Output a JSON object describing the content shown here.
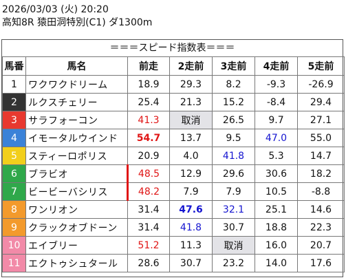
{
  "header": {
    "date_line": "2026/03/03 (火) 20:20",
    "race_line": "高知8R 猿田洞特別(C1) ダ1300m"
  },
  "banner": "＝＝＝スピード指数表＝＝＝",
  "columns": [
    "馬番",
    "馬名",
    "前走",
    "2走前",
    "3走前",
    "4走前",
    "5走前"
  ],
  "colors": {
    "red": "#e01515",
    "blue": "#1515d0",
    "gray_cell": "#e3e3e7"
  },
  "rows": [
    {
      "num": "1",
      "num_bg": "#ffffff",
      "num_fg": "#111111",
      "name": "ワクワクドリーム",
      "c1": "18.9",
      "c2": "29.3",
      "c3": "8.2",
      "c4": "-9.3",
      "c5": "-26.9"
    },
    {
      "num": "2",
      "num_bg": "#333333",
      "num_fg": "#ffffff",
      "name": "ルクスチェリー",
      "c1": "25.4",
      "c2": "21.3",
      "c3": "15.2",
      "c4": "-8.4",
      "c5": "29.4"
    },
    {
      "num": "3",
      "num_bg": "#e8392f",
      "num_fg": "#ffffff",
      "name": "サラフォーコン",
      "c1": "41.3",
      "c2": "取消",
      "c3": "26.5",
      "c4": "9.7",
      "c5": "27.1"
    },
    {
      "num": "4",
      "num_bg": "#3b82d8",
      "num_fg": "#ffffff",
      "name": "イモータルウインド",
      "c1": "54.7",
      "c2": "13.7",
      "c3": "9.5",
      "c4": "47.0",
      "c5": "55.0"
    },
    {
      "num": "5",
      "num_bg": "#f2cf1c",
      "num_fg": "#ffffff",
      "name": "スティーロポリス",
      "c1": "20.9",
      "c2": "4.0",
      "c3": "41.8",
      "c4": "5.3",
      "c5": "14.7"
    },
    {
      "num": "6",
      "num_bg": "#2fa84a",
      "num_fg": "#ffffff",
      "name": "ブラビオ",
      "c1": "48.5",
      "c2": "12.9",
      "c3": "29.6",
      "c4": "30.6",
      "c5": "18.2"
    },
    {
      "num": "7",
      "num_bg": "#2fa84a",
      "num_fg": "#ffffff",
      "name": "ビービーバシリス",
      "c1": "48.2",
      "c2": "7.9",
      "c3": "7.9",
      "c4": "10.5",
      "c5": "-8.8"
    },
    {
      "num": "8",
      "num_bg": "#f39a2c",
      "num_fg": "#ffffff",
      "name": "ワンリオン",
      "c1": "31.4",
      "c2": "47.6",
      "c3": "32.1",
      "c4": "25.1",
      "c5": "14.6"
    },
    {
      "num": "9",
      "num_bg": "#f39a2c",
      "num_fg": "#ffffff",
      "name": "クラックオブドーン",
      "c1": "31.4",
      "c2": "41.8",
      "c3": "30.7",
      "c4": "18.8",
      "c5": "22.3"
    },
    {
      "num": "10",
      "num_bg": "#f28aa8",
      "num_fg": "#ffffff",
      "name": "エイブリー",
      "c1": "51.2",
      "c2": "11.3",
      "c3": "取消",
      "c4": "16.0",
      "c5": "20.7"
    },
    {
      "num": "11",
      "num_bg": "#f28aa8",
      "num_fg": "#ffffff",
      "name": "エクトゥシュタール",
      "c1": "28.6",
      "c2": "30.7",
      "c3": "23.2",
      "c4": "14.0",
      "c5": "17.6"
    }
  ]
}
